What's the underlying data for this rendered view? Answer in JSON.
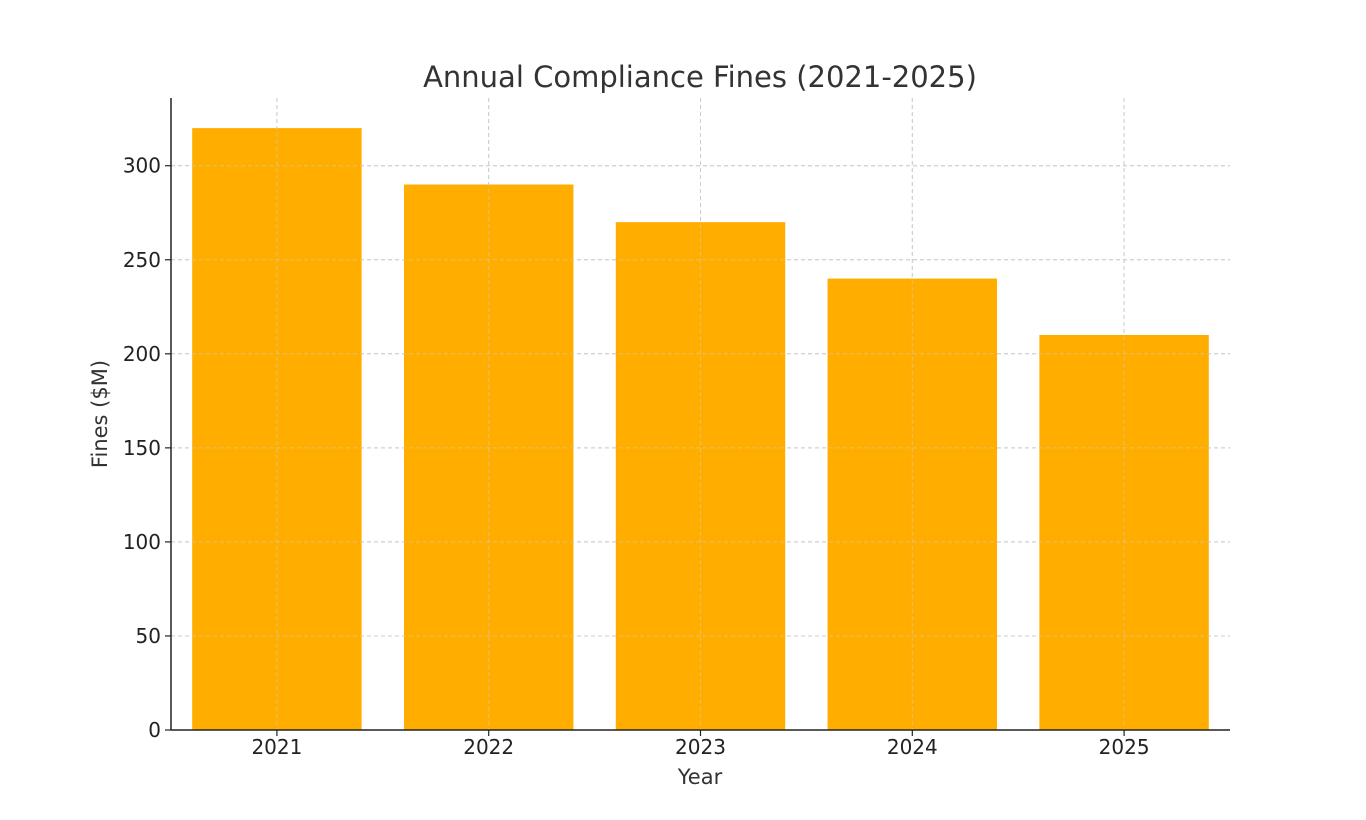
{
  "chart_data": {
    "type": "bar",
    "title": "Annual Compliance Fines (2021-2025)",
    "xlabel": "Year",
    "ylabel": "Fines ($M)",
    "categories": [
      "2021",
      "2022",
      "2023",
      "2024",
      "2025"
    ],
    "values": [
      320,
      290,
      270,
      240,
      210
    ],
    "ylim": [
      0,
      336
    ],
    "yticks": [
      0,
      50,
      100,
      150,
      200,
      250,
      300
    ],
    "grid": true,
    "bar_color": "#FFAE00"
  }
}
